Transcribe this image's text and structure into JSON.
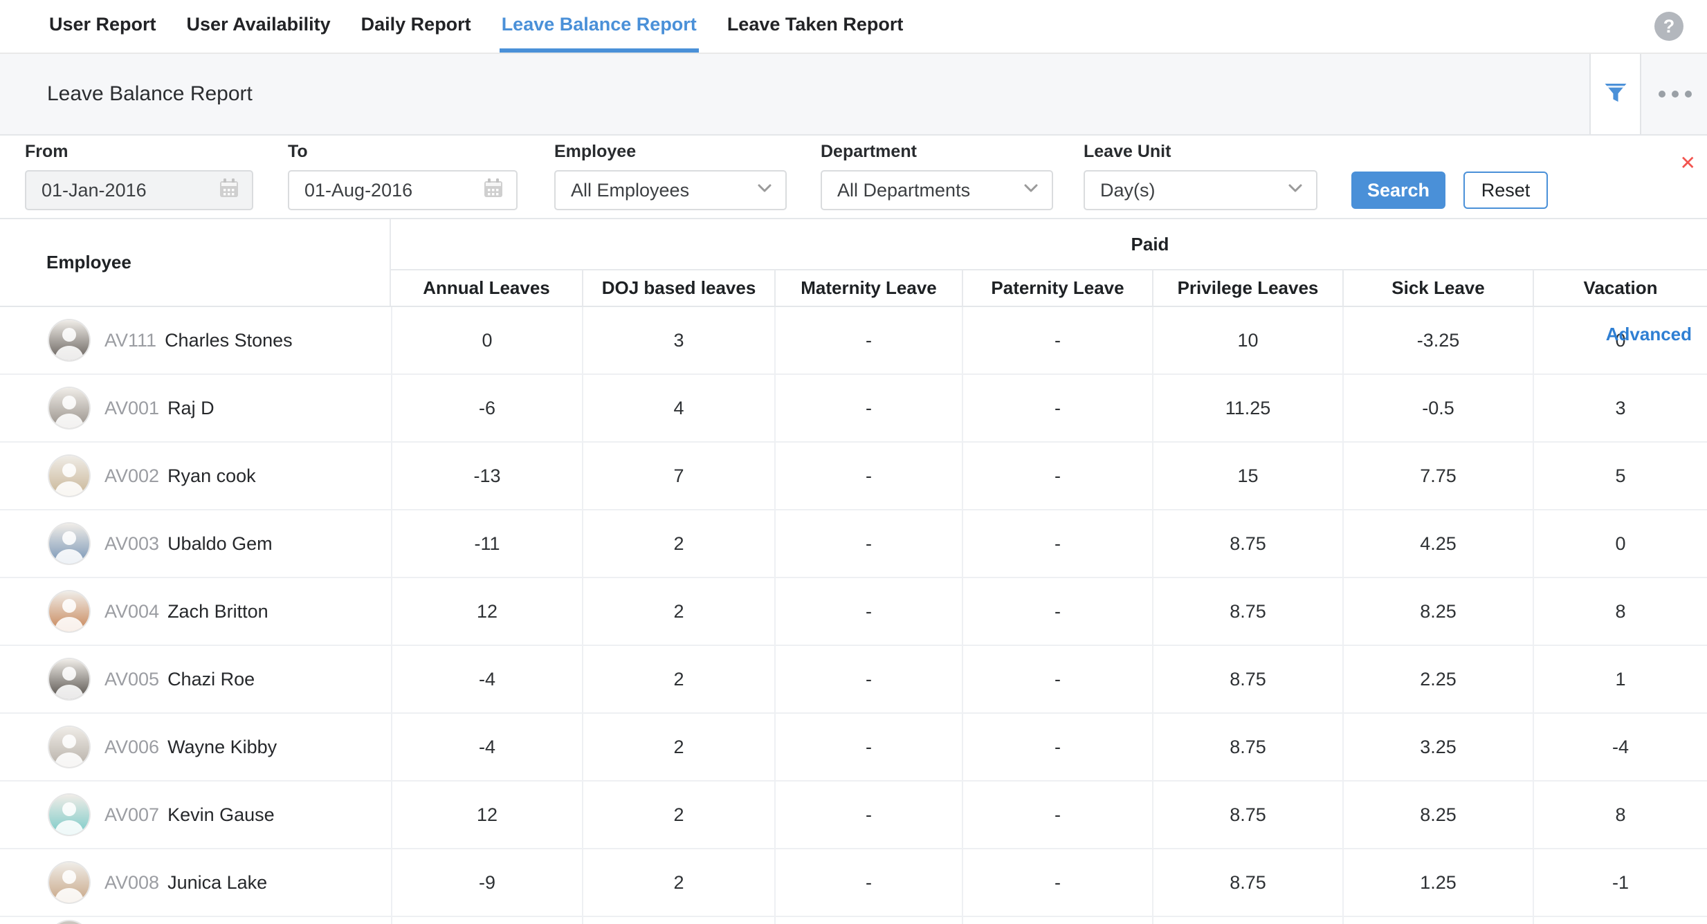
{
  "nav": {
    "tabs": [
      {
        "label": "User Report",
        "active": false
      },
      {
        "label": "User Availability",
        "active": false
      },
      {
        "label": "Daily Report",
        "active": false
      },
      {
        "label": "Leave Balance Report",
        "active": true
      },
      {
        "label": "Leave Taken Report",
        "active": false
      }
    ]
  },
  "header": {
    "title": "Leave Balance Report"
  },
  "icons": {
    "help": "?",
    "close": "✕",
    "filter": "funnel",
    "more": "ellipsis",
    "calendar": "calendar",
    "chevron": "chevron-down",
    "avatar": "person-photo"
  },
  "filters": {
    "from": {
      "label": "From",
      "value": "01-Jan-2016"
    },
    "to": {
      "label": "To",
      "value": "01-Aug-2016"
    },
    "employee": {
      "label": "Employee",
      "value": "All Employees"
    },
    "department": {
      "label": "Department",
      "value": "All Departments"
    },
    "leave_unit": {
      "label": "Leave Unit",
      "value": "Day(s)"
    },
    "search_label": "Search",
    "reset_label": "Reset",
    "advanced_label": "Advanced"
  },
  "table": {
    "employee_header": "Employee",
    "group_header": "Paid",
    "columns": [
      "Annual Leaves",
      "DOJ based leaves",
      "Maternity Leave",
      "Paternity Leave",
      "Privilege Leaves",
      "Sick Leave",
      "Vacation"
    ],
    "rows": [
      {
        "id": "AV111",
        "name": "Charles Stones",
        "avatar_color": "#6b6560",
        "values": [
          "0",
          "3",
          "-",
          "-",
          "10",
          "-3.25",
          "0"
        ]
      },
      {
        "id": "AV001",
        "name": "Raj D",
        "avatar_color": "#9a938c",
        "values": [
          "-6",
          "4",
          "-",
          "-",
          "11.25",
          "-0.5",
          "3"
        ]
      },
      {
        "id": "AV002",
        "name": "Ryan cook",
        "avatar_color": "#cbb89a",
        "values": [
          "-13",
          "7",
          "-",
          "-",
          "15",
          "7.75",
          "5"
        ]
      },
      {
        "id": "AV003",
        "name": "Ubaldo Gem",
        "avatar_color": "#7d99b8",
        "values": [
          "-11",
          "2",
          "-",
          "-",
          "8.75",
          "4.25",
          "0"
        ]
      },
      {
        "id": "AV004",
        "name": "Zach Britton",
        "avatar_color": "#c98a5e",
        "values": [
          "12",
          "2",
          "-",
          "-",
          "8.75",
          "8.25",
          "8"
        ]
      },
      {
        "id": "AV005",
        "name": "Chazi Roe",
        "avatar_color": "#5a5550",
        "values": [
          "-4",
          "2",
          "-",
          "-",
          "8.75",
          "2.25",
          "1"
        ]
      },
      {
        "id": "AV006",
        "name": "Wayne Kibby",
        "avatar_color": "#b9b2aa",
        "values": [
          "-4",
          "2",
          "-",
          "-",
          "8.75",
          "3.25",
          "-4"
        ]
      },
      {
        "id": "AV007",
        "name": "Kevin Gause",
        "avatar_color": "#7fccc9",
        "values": [
          "12",
          "2",
          "-",
          "-",
          "8.75",
          "8.25",
          "8"
        ]
      },
      {
        "id": "AV008",
        "name": "Junica Lake",
        "avatar_color": "#c9a98a",
        "values": [
          "-9",
          "2",
          "-",
          "-",
          "8.75",
          "1.25",
          "-1"
        ]
      }
    ]
  },
  "colors": {
    "accent_blue": "#4a90d8",
    "close_red": "#f2544f",
    "titlebar_bg": "#f6f7f9",
    "id_gray": "#9b9da2"
  }
}
